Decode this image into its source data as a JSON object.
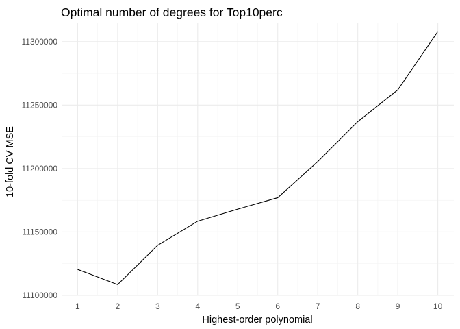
{
  "chart_data": {
    "type": "line",
    "title": "Optimal number of degrees for Top10perc",
    "xlabel": "Highest-order polynomial",
    "ylabel": "10-fold CV MSE",
    "x": [
      1,
      2,
      3,
      4,
      5,
      6,
      7,
      8,
      9,
      10
    ],
    "y": [
      11120500,
      11108500,
      11139500,
      11158500,
      11168000,
      11177000,
      11205500,
      11237000,
      11262000,
      11308000
    ],
    "xlim": [
      0.6,
      10.4
    ],
    "ylim": [
      11100000,
      11315000
    ],
    "x_ticks": [
      1,
      2,
      3,
      4,
      5,
      6,
      7,
      8,
      9,
      10
    ],
    "x_tick_labels": [
      "1",
      "2",
      "3",
      "4",
      "5",
      "6",
      "7",
      "8",
      "9",
      "10"
    ],
    "y_ticks": [
      11100000,
      11150000,
      11200000,
      11250000,
      11300000
    ],
    "y_tick_labels": [
      "11100000",
      "11150000",
      "11200000",
      "11250000",
      "11300000"
    ],
    "grid": true,
    "legend": "none",
    "colors": {
      "line": "#000000",
      "grid_major": "#ebebeb",
      "grid_minor": "#f2f2f2",
      "tick_text": "#4d4d4d"
    }
  }
}
